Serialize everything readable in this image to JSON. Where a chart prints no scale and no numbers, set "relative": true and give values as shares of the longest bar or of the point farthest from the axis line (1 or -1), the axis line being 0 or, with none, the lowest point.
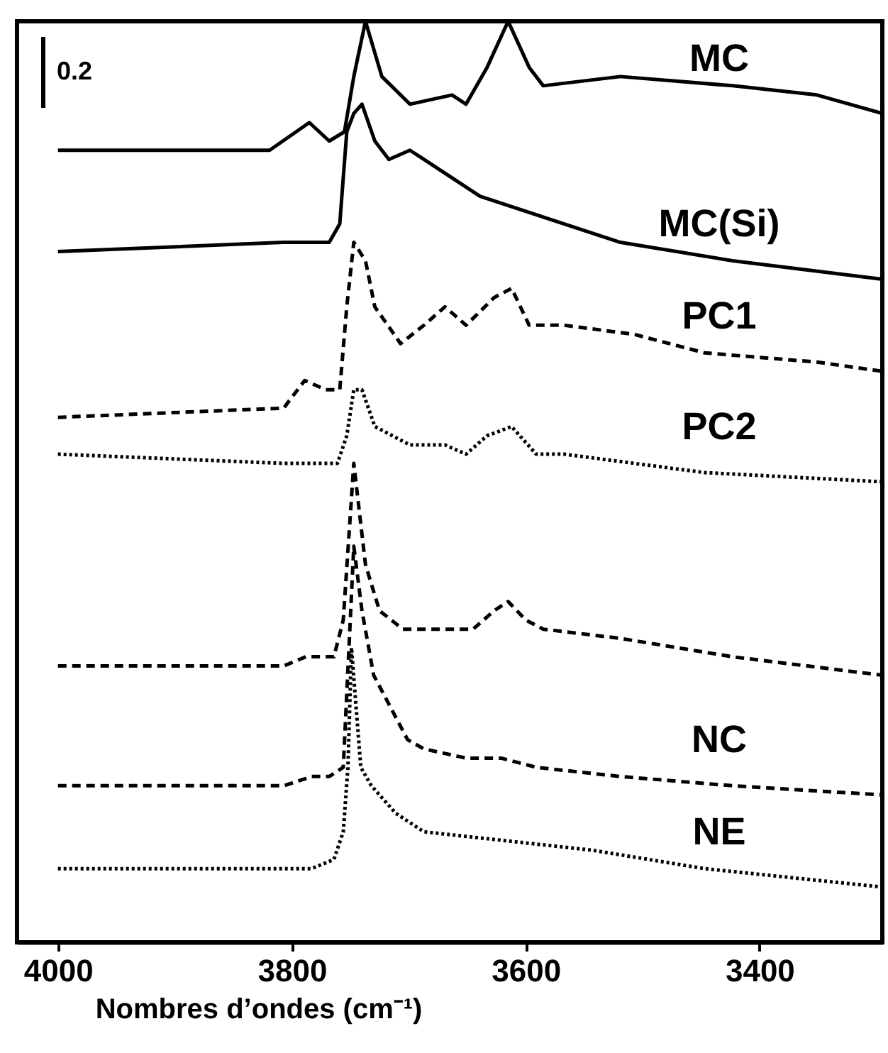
{
  "chart_data": {
    "type": "line",
    "relative": true,
    "xlabel": "Nombres d’ondes (cm⁻¹)",
    "xlim": [
      4035,
      3295
    ],
    "xticks": [
      4000,
      3800,
      3600,
      3400
    ],
    "annotations": [
      "0.2"
    ],
    "series": [
      {
        "name": "MC",
        "color": "#000000",
        "line_style": "solid",
        "x": [
          4000,
          3819,
          3785,
          3768,
          3755,
          3747,
          3737,
          3723,
          3699,
          3663,
          3651,
          3633,
          3615,
          3597,
          3585,
          3519,
          3423,
          3351,
          3295
        ],
        "values": [
          0.86,
          0.86,
          0.89,
          0.87,
          0.88,
          0.94,
          1.0,
          0.94,
          0.91,
          0.92,
          0.91,
          0.95,
          1.0,
          0.95,
          0.93,
          0.94,
          0.93,
          0.92,
          0.9
        ]
      },
      {
        "name": "MC(Si)",
        "color": "#000000",
        "line_style": "solid",
        "x": [
          4000,
          3807,
          3768,
          3759,
          3753,
          3747,
          3740,
          3729,
          3717,
          3699,
          3687,
          3663,
          3639,
          3591,
          3519,
          3423,
          3295
        ],
        "values": [
          0.75,
          0.76,
          0.76,
          0.78,
          0.88,
          0.9,
          0.91,
          0.87,
          0.85,
          0.86,
          0.85,
          0.83,
          0.81,
          0.79,
          0.76,
          0.74,
          0.72
        ]
      },
      {
        "name": "PC1",
        "color": "#000000",
        "line_style": "dashed",
        "x": [
          4000,
          3807,
          3789,
          3771,
          3759,
          3753,
          3747,
          3737,
          3729,
          3707,
          3687,
          3669,
          3651,
          3627,
          3612,
          3597,
          3567,
          3507,
          3447,
          3351,
          3295
        ],
        "values": [
          0.57,
          0.58,
          0.61,
          0.6,
          0.6,
          0.69,
          0.76,
          0.74,
          0.69,
          0.65,
          0.67,
          0.69,
          0.67,
          0.7,
          0.71,
          0.67,
          0.67,
          0.66,
          0.64,
          0.63,
          0.62
        ]
      },
      {
        "name": "PC2",
        "color": "#000000",
        "line_style": "dotted",
        "x": [
          4000,
          3807,
          3785,
          3761,
          3753,
          3747,
          3740,
          3729,
          3699,
          3669,
          3651,
          3633,
          3612,
          3591,
          3567,
          3447,
          3295
        ],
        "values": [
          0.53,
          0.52,
          0.52,
          0.52,
          0.55,
          0.6,
          0.6,
          0.56,
          0.54,
          0.54,
          0.53,
          0.55,
          0.56,
          0.53,
          0.53,
          0.51,
          0.5
        ]
      },
      {
        "color": "#000000",
        "line_style": "dashed",
        "x": [
          4000,
          3807,
          3788,
          3764,
          3756,
          3747,
          3737,
          3725,
          3705,
          3645,
          3627,
          3615,
          3600,
          3585,
          3519,
          3423,
          3295
        ],
        "values": [
          0.3,
          0.3,
          0.31,
          0.31,
          0.35,
          0.52,
          0.41,
          0.36,
          0.34,
          0.34,
          0.36,
          0.37,
          0.35,
          0.34,
          0.33,
          0.31,
          0.29
        ]
      },
      {
        "name": "NC",
        "color": "#000000",
        "line_style": "dashed",
        "x": [
          4000,
          3807,
          3783,
          3768,
          3756,
          3747,
          3740,
          3730,
          3701,
          3687,
          3651,
          3621,
          3591,
          3519,
          3423,
          3295
        ],
        "values": [
          0.17,
          0.17,
          0.18,
          0.18,
          0.19,
          0.43,
          0.36,
          0.29,
          0.22,
          0.21,
          0.2,
          0.2,
          0.19,
          0.18,
          0.17,
          0.16
        ]
      },
      {
        "name": "NE",
        "color": "#000000",
        "line_style": "dotted",
        "x": [
          4000,
          3783,
          3764,
          3756,
          3752,
          3749,
          3741,
          3732,
          3711,
          3687,
          3615,
          3543,
          3447,
          3295
        ],
        "values": [
          0.08,
          0.08,
          0.09,
          0.12,
          0.19,
          0.32,
          0.19,
          0.17,
          0.14,
          0.12,
          0.11,
          0.1,
          0.08,
          0.06
        ]
      }
    ]
  }
}
